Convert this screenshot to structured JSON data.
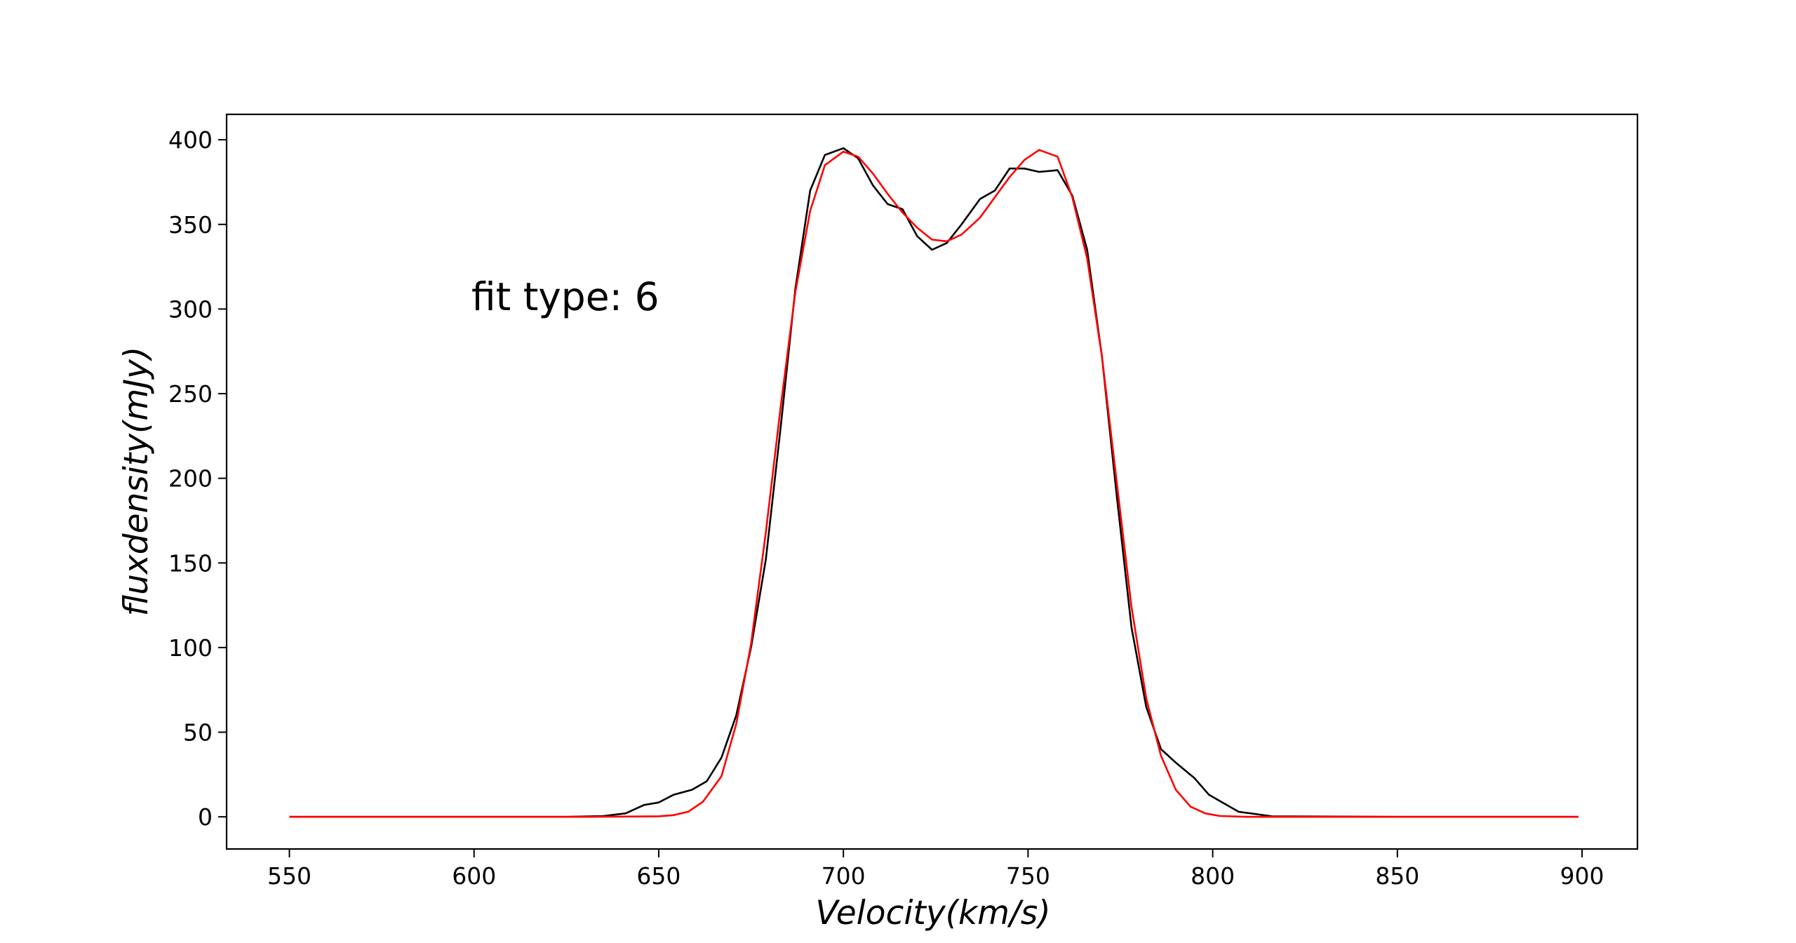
{
  "chart_data": {
    "type": "line",
    "xlabel": "Velocity(km/s)",
    "ylabel": "fluxdensity(mJy)",
    "annotation": "fit type: 6",
    "xlim": [
      533,
      915
    ],
    "ylim": [
      -19,
      415
    ],
    "x_ticks": [
      550,
      600,
      650,
      700,
      750,
      800,
      850,
      900
    ],
    "y_ticks": [
      0,
      50,
      100,
      150,
      200,
      250,
      300,
      350,
      400
    ],
    "grid": false,
    "series": [
      {
        "color": "#000000",
        "points": [
          [
            550,
            0
          ],
          [
            600,
            0
          ],
          [
            625,
            0
          ],
          [
            635,
            0.5
          ],
          [
            641,
            2
          ],
          [
            646,
            7
          ],
          [
            650,
            8.5
          ],
          [
            654,
            13
          ],
          [
            659,
            16
          ],
          [
            663,
            21
          ],
          [
            667,
            35
          ],
          [
            671,
            60
          ],
          [
            675,
            100
          ],
          [
            679,
            152
          ],
          [
            683,
            230
          ],
          [
            687,
            312
          ],
          [
            691,
            370
          ],
          [
            695,
            391
          ],
          [
            700,
            395
          ],
          [
            704,
            389
          ],
          [
            708,
            373
          ],
          [
            712,
            362
          ],
          [
            716,
            359
          ],
          [
            720,
            343
          ],
          [
            724,
            335
          ],
          [
            728,
            339
          ],
          [
            732,
            350
          ],
          [
            737,
            365
          ],
          [
            741,
            370
          ],
          [
            745,
            383
          ],
          [
            749,
            383
          ],
          [
            753,
            381
          ],
          [
            758,
            382
          ],
          [
            762,
            367
          ],
          [
            766,
            335
          ],
          [
            770,
            272
          ],
          [
            774,
            190
          ],
          [
            778,
            112
          ],
          [
            782,
            65
          ],
          [
            786,
            40
          ],
          [
            790,
            32
          ],
          [
            795,
            23
          ],
          [
            799,
            13
          ],
          [
            803,
            8
          ],
          [
            807,
            3
          ],
          [
            812,
            1.5
          ],
          [
            816,
            0.3
          ],
          [
            850,
            0
          ],
          [
            899,
            0
          ]
        ]
      },
      {
        "color": "#ff0000",
        "points": [
          [
            550,
            0
          ],
          [
            630,
            0
          ],
          [
            650,
            0.3
          ],
          [
            654,
            1
          ],
          [
            658,
            3
          ],
          [
            662,
            9
          ],
          [
            667,
            24
          ],
          [
            671,
            55
          ],
          [
            675,
            102
          ],
          [
            679,
            168
          ],
          [
            683,
            242
          ],
          [
            687,
            310
          ],
          [
            691,
            358
          ],
          [
            695,
            385
          ],
          [
            700,
            393
          ],
          [
            704,
            390
          ],
          [
            708,
            380
          ],
          [
            712,
            368
          ],
          [
            716,
            357
          ],
          [
            720,
            348
          ],
          [
            724,
            341
          ],
          [
            728,
            340
          ],
          [
            732,
            344
          ],
          [
            737,
            354
          ],
          [
            741,
            366
          ],
          [
            745,
            378
          ],
          [
            749,
            388
          ],
          [
            753,
            394
          ],
          [
            758,
            390
          ],
          [
            762,
            366
          ],
          [
            766,
            330
          ],
          [
            770,
            272
          ],
          [
            774,
            198
          ],
          [
            778,
            124
          ],
          [
            782,
            70
          ],
          [
            786,
            36
          ],
          [
            790,
            16
          ],
          [
            794,
            6
          ],
          [
            798,
            2
          ],
          [
            802,
            0.5
          ],
          [
            810,
            0
          ],
          [
            850,
            0
          ],
          [
            899,
            0
          ]
        ]
      }
    ]
  }
}
